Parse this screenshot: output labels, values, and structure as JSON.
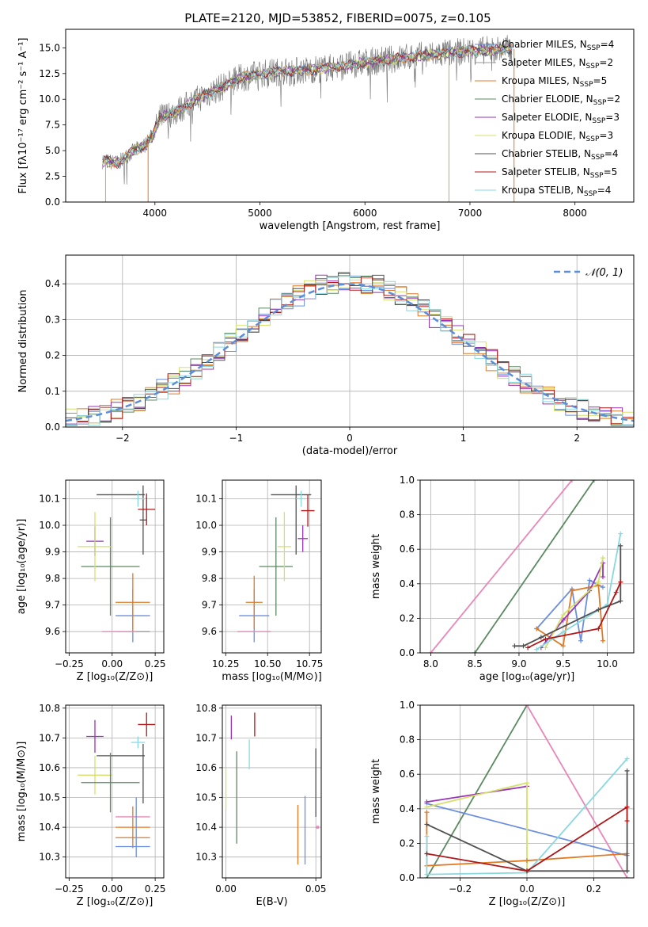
{
  "figure_title": "PLATE=2120, MJD=53852, FIBERID=0075, z=0.105",
  "colors": {
    "chabrier_miles": "#6a8ee0",
    "salpeter_miles": "#9a9a9a",
    "kroupa_miles": "#e07a24",
    "chabrier_elodie": "#5a8a60",
    "salpeter_elodie": "#9a34b8",
    "kroupa_elodie": "#d4e06a",
    "chabrier_stelib": "#505050",
    "salpeter_stelib": "#b01818",
    "kroupa_stelib": "#88d8e0",
    "gaussian": "#5b8dd9",
    "pink": "#e887b8"
  },
  "chart_data": [
    {
      "id": "spectrum",
      "type": "line",
      "xlabel": "wavelength [Angstrom, rest frame]",
      "ylabel": "Flux [fλ10⁻¹⁷ erg cm⁻² s⁻¹ A⁻¹]",
      "xlim": [
        3150,
        8560
      ],
      "ylim": [
        0,
        16.8
      ],
      "xticks": [
        4000,
        5000,
        6000,
        7000,
        8000
      ],
      "yticks": [
        0.0,
        2.5,
        5.0,
        7.5,
        10.0,
        12.5,
        15.0
      ],
      "legend_position": "right",
      "legend": [
        {
          "label": "Chabrier MILES, N",
          "sub": "SSP",
          "eq": "=4",
          "color_key": "chabrier_miles"
        },
        {
          "label": "Salpeter MILES, N",
          "sub": "SSP",
          "eq": "=2",
          "color_key": "salpeter_miles"
        },
        {
          "label": "Kroupa MILES, N",
          "sub": "SSP",
          "eq": "=5",
          "color_key": "kroupa_miles"
        },
        {
          "label": "Chabrier ELODIE, N",
          "sub": "SSP",
          "eq": "=2",
          "color_key": "chabrier_elodie"
        },
        {
          "label": "Salpeter ELODIE, N",
          "sub": "SSP",
          "eq": "=3",
          "color_key": "salpeter_elodie"
        },
        {
          "label": "Kroupa ELODIE, N",
          "sub": "SSP",
          "eq": "=3",
          "color_key": "kroupa_elodie"
        },
        {
          "label": "Chabrier STELIB, N",
          "sub": "SSP",
          "eq": "=4",
          "color_key": "chabrier_stelib"
        },
        {
          "label": "Salpeter STELIB, N",
          "sub": "SSP",
          "eq": "=5",
          "color_key": "salpeter_stelib"
        },
        {
          "label": "Kroupa STELIB, N",
          "sub": "SSP",
          "eq": "=4",
          "color_key": "kroupa_stelib"
        }
      ],
      "continuum": {
        "x": [
          3500,
          3650,
          3800,
          3900,
          3980,
          4050,
          4200,
          4400,
          4600,
          4800,
          5000,
          5200,
          5400,
          5600,
          5800,
          6000,
          6200,
          6400,
          6600,
          6800,
          7000,
          7200,
          7400
        ],
        "y": [
          4.0,
          3.8,
          5.0,
          5.5,
          6.5,
          8.2,
          8.8,
          10.0,
          11.0,
          12.0,
          12.5,
          12.7,
          12.8,
          13.0,
          13.2,
          13.6,
          13.8,
          14.1,
          14.3,
          14.5,
          14.7,
          14.8,
          14.9
        ]
      },
      "dips": [
        {
          "x": 3530,
          "y": 0
        },
        {
          "x": 3935,
          "y": 0
        },
        {
          "x": 6800,
          "y": 0
        },
        {
          "x": 7420,
          "y": 0
        }
      ]
    },
    {
      "id": "residuals",
      "type": "histogram",
      "xlabel": "(data-model)/error",
      "ylabel": "Normed distribution",
      "xlim": [
        -2.5,
        2.5
      ],
      "ylim": [
        0,
        0.48
      ],
      "xticks": [
        -2,
        -1,
        0,
        1,
        2
      ],
      "yticks": [
        0.0,
        0.1,
        0.2,
        0.3,
        0.4
      ],
      "gaussian_label": "𝒩(0, 1)",
      "legend_position": "top-right"
    },
    {
      "id": "z_vs_age",
      "type": "errorbar",
      "xlabel": "Z [log₁₀(Z/Z⊙)]",
      "ylabel": "age  [log₁₀(age/yr)]",
      "xlim": [
        -0.27,
        0.3
      ],
      "ylim": [
        9.52,
        10.17
      ],
      "xticks": [
        -0.25,
        0.0,
        0.25
      ],
      "yticks": [
        9.6,
        9.7,
        9.8,
        9.9,
        10.0,
        10.1
      ],
      "points": [
        {
          "x": 0.12,
          "xerr": 0.1,
          "y": 9.66,
          "yerr": 0.1,
          "color_key": "chabrier_miles"
        },
        {
          "x": 0.12,
          "xerr": 0.1,
          "y": 9.6,
          "yerr": 0.0,
          "color_key": "salpeter_miles"
        },
        {
          "x": 0.12,
          "xerr": 0.1,
          "y": 9.71,
          "yerr": 0.11,
          "color_key": "kroupa_miles"
        },
        {
          "x": -0.01,
          "xerr": 0.17,
          "y": 9.845,
          "yerr": 0.185,
          "color_key": "chabrier_elodie"
        },
        {
          "x": -0.1,
          "xerr": 0.05,
          "y": 9.94,
          "yerr": 0.055,
          "color_key": "salpeter_elodie"
        },
        {
          "x": -0.1,
          "xerr": 0.1,
          "y": 9.92,
          "yerr": 0.13,
          "color_key": "kroupa_elodie"
        },
        {
          "x": 0.05,
          "xerr": 0.14,
          "y": 10.115,
          "yerr": 0.0,
          "color_key": "chabrier_stelib"
        },
        {
          "x": 0.18,
          "xerr": 0.02,
          "y": 10.02,
          "yerr": 0.13,
          "color_key": "chabrier_stelib"
        },
        {
          "x": 0.2,
          "xerr": 0.05,
          "y": 10.06,
          "yerr": 0.06,
          "color_key": "salpeter_stelib"
        },
        {
          "x": 0.15,
          "xerr": 0.04,
          "y": 10.1,
          "yerr": 0.03,
          "color_key": "kroupa_stelib"
        },
        {
          "x": 0.04,
          "xerr": 0.1,
          "y": 9.6,
          "yerr": 0.0,
          "color_key": "pink"
        }
      ]
    },
    {
      "id": "mass_vs_age",
      "type": "errorbar",
      "xlabel": "mass [log₁₀(M/M⊙)]",
      "ylabel": "",
      "xlim": [
        10.23,
        10.82
      ],
      "ylim": [
        9.52,
        10.17
      ],
      "xticks": [
        10.25,
        10.5,
        10.75
      ],
      "yticks": [
        9.6,
        9.7,
        9.8,
        9.9,
        10.0,
        10.1
      ],
      "points": [
        {
          "x": 10.42,
          "xerr": 0.09,
          "y": 9.66,
          "yerr": 0.1,
          "color_key": "chabrier_miles"
        },
        {
          "x": 10.42,
          "xerr": 0.1,
          "y": 9.6,
          "yerr": 0.0,
          "color_key": "pink"
        },
        {
          "x": 10.42,
          "xerr": 0.05,
          "y": 9.71,
          "yerr": 0.1,
          "color_key": "kroupa_miles"
        },
        {
          "x": 10.55,
          "xerr": 0.1,
          "y": 9.845,
          "yerr": 0.185,
          "color_key": "chabrier_elodie"
        },
        {
          "x": 10.71,
          "xerr": 0.03,
          "y": 9.95,
          "yerr": 0.05,
          "color_key": "salpeter_elodie"
        },
        {
          "x": 10.6,
          "xerr": 0.04,
          "y": 9.92,
          "yerr": 0.13,
          "color_key": "kroupa_elodie"
        },
        {
          "x": 10.64,
          "xerr": 0.12,
          "y": 10.115,
          "yerr": 0.0,
          "color_key": "chabrier_stelib"
        },
        {
          "x": 10.67,
          "xerr": 0.0,
          "y": 10.02,
          "yerr": 0.13,
          "color_key": "chabrier_stelib"
        },
        {
          "x": 10.74,
          "xerr": 0.04,
          "y": 10.055,
          "yerr": 0.06,
          "color_key": "salpeter_stelib"
        },
        {
          "x": 10.7,
          "xerr": 0.03,
          "y": 10.1,
          "yerr": 0.03,
          "color_key": "kroupa_stelib"
        }
      ]
    },
    {
      "id": "weight_vs_age",
      "type": "line",
      "xlabel": "age  [log₁₀(age/yr)]",
      "ylabel": "mass weight",
      "xlim": [
        7.88,
        10.3
      ],
      "ylim": [
        0,
        1.0
      ],
      "xticks": [
        8.0,
        8.5,
        9.0,
        9.5,
        10.0
      ],
      "yticks": [
        0.0,
        0.2,
        0.4,
        0.6,
        0.8,
        1.0
      ],
      "series": [
        {
          "color_key": "pink",
          "x": [
            8.0,
            9.6
          ],
          "y": [
            0.0,
            1.0
          ]
        },
        {
          "color_key": "chabrier_elodie",
          "x": [
            8.5,
            9.85
          ],
          "y": [
            0.0,
            1.0
          ]
        },
        {
          "color_key": "chabrier_miles",
          "x": [
            9.2,
            9.6,
            9.7,
            9.8,
            9.95
          ],
          "y": [
            0.14,
            0.37,
            0.07,
            0.42,
            0.38
          ]
        },
        {
          "color_key": "kroupa_miles",
          "x": [
            9.2,
            9.5,
            9.6,
            9.9,
            9.95
          ],
          "y": [
            0.14,
            0.04,
            0.36,
            0.39,
            0.07
          ]
        },
        {
          "color_key": "salpeter_elodie",
          "x": [
            9.25,
            9.5,
            9.8,
            9.95,
            9.95
          ],
          "y": [
            0.03,
            0.19,
            0.36,
            0.52,
            0.44
          ]
        },
        {
          "color_key": "kroupa_elodie",
          "x": [
            9.3,
            9.5,
            9.9,
            9.95
          ],
          "y": [
            0.03,
            0.22,
            0.41,
            0.55
          ]
        },
        {
          "color_key": "kroupa_stelib",
          "x": [
            9.2,
            9.5,
            10.0,
            10.15
          ],
          "y": [
            0.02,
            0.12,
            0.28,
            0.69
          ]
        },
        {
          "color_key": "chabrier_stelib",
          "x": [
            8.95,
            9.05,
            9.25,
            9.9,
            10.15,
            10.15
          ],
          "y": [
            0.04,
            0.04,
            0.09,
            0.25,
            0.3,
            0.62
          ]
        },
        {
          "color_key": "salpeter_stelib",
          "x": [
            9.1,
            9.3,
            9.9,
            10.1,
            10.15
          ],
          "y": [
            0.03,
            0.08,
            0.14,
            0.35,
            0.41
          ]
        }
      ]
    },
    {
      "id": "z_vs_mass",
      "type": "errorbar",
      "xlabel": "Z [log₁₀(Z/Z⊙)]",
      "ylabel": "mass [log₁₀(M/M⊙)]",
      "xlim": [
        -0.27,
        0.3
      ],
      "ylim": [
        10.23,
        10.81
      ],
      "xticks": [
        -0.25,
        0.0,
        0.25
      ],
      "yticks": [
        10.3,
        10.4,
        10.5,
        10.6,
        10.7,
        10.8
      ],
      "points": [
        {
          "x": -0.1,
          "xerr": 0.05,
          "y": 10.705,
          "yerr": 0.055,
          "color_key": "salpeter_elodie"
        },
        {
          "x": 0.2,
          "xerr": 0.05,
          "y": 10.745,
          "yerr": 0.04,
          "color_key": "salpeter_stelib"
        },
        {
          "x": 0.15,
          "xerr": 0.04,
          "y": 10.685,
          "yerr": 0.02,
          "color_key": "kroupa_stelib"
        },
        {
          "x": 0.05,
          "xerr": 0.14,
          "y": 10.64,
          "yerr": 0.0,
          "color_key": "chabrier_stelib"
        },
        {
          "x": 0.18,
          "xerr": 0.0,
          "y": 10.58,
          "yerr": 0.1,
          "color_key": "chabrier_stelib"
        },
        {
          "x": -0.1,
          "xerr": 0.1,
          "y": 10.575,
          "yerr": 0.065,
          "color_key": "kroupa_elodie"
        },
        {
          "x": -0.01,
          "xerr": 0.17,
          "y": 10.55,
          "yerr": 0.1,
          "color_key": "chabrier_elodie"
        },
        {
          "x": 0.12,
          "xerr": 0.1,
          "y": 10.4,
          "yerr": 0.07,
          "color_key": "kroupa_miles"
        },
        {
          "x": 0.12,
          "xerr": 0.1,
          "y": 10.435,
          "yerr": 0.0,
          "color_key": "pink"
        },
        {
          "x": 0.12,
          "xerr": 0.1,
          "y": 10.365,
          "yerr": 0.0,
          "color_key": "kroupa_miles"
        },
        {
          "x": 0.12,
          "xerr": 0.1,
          "y": 10.335,
          "yerr": 0.0,
          "color_key": "chabrier_miles"
        },
        {
          "x": 0.14,
          "xerr": 0.0,
          "y": 10.4,
          "yerr": 0.1,
          "color_key": "chabrier_miles"
        }
      ]
    },
    {
      "id": "ebv_vs_mass",
      "type": "errorbar",
      "xlabel": "E(B-V)",
      "ylabel": "",
      "xlim": [
        -0.002,
        0.053
      ],
      "ylim": [
        10.23,
        10.81
      ],
      "xticks": [
        0.0,
        0.05
      ],
      "yticks": [
        10.3,
        10.4,
        10.5,
        10.6,
        10.7,
        10.8
      ],
      "points": [
        {
          "x": 0.003,
          "xerr": 0.0,
          "y": 10.735,
          "yerr": 0.04,
          "color_key": "salpeter_elodie"
        },
        {
          "x": 0.016,
          "xerr": 0.0,
          "y": 10.745,
          "yerr": 0.04,
          "color_key": "salpeter_stelib"
        },
        {
          "x": 0.013,
          "xerr": 0.0,
          "y": 10.645,
          "yerr": 0.05,
          "color_key": "kroupa_stelib"
        },
        {
          "x": 0.006,
          "xerr": 0.0,
          "y": 10.5,
          "yerr": 0.155,
          "color_key": "chabrier_elodie"
        },
        {
          "x": 0.0,
          "xerr": 0.0,
          "y": 10.53,
          "yerr": 0.07,
          "color_key": "kroupa_elodie"
        },
        {
          "x": 0.04,
          "xerr": 0.0,
          "y": 10.375,
          "yerr": 0.1,
          "color_key": "kroupa_miles"
        },
        {
          "x": 0.044,
          "xerr": 0.0,
          "y": 10.39,
          "yerr": 0.115,
          "color_key": "chabrier_miles"
        },
        {
          "x": 0.05,
          "xerr": 0.0,
          "y": 10.55,
          "yerr": 0.115,
          "color_key": "chabrier_stelib"
        },
        {
          "x": 0.051,
          "xerr": 0.0,
          "y": 10.4,
          "yerr": 0.0,
          "color_key": "pink"
        }
      ]
    },
    {
      "id": "weight_vs_z",
      "type": "line",
      "xlabel": "Z [log₁₀(Z/Z⊙)]",
      "ylabel": "mass weight",
      "xlim": [
        -0.32,
        0.32
      ],
      "ylim": [
        0,
        1.0
      ],
      "xticks": [
        -0.2,
        0.0,
        0.2
      ],
      "yticks": [
        0.0,
        0.2,
        0.4,
        0.6,
        0.8,
        1.0
      ],
      "series": [
        {
          "color_key": "chabrier_elodie",
          "x": [
            -0.3,
            0.0
          ],
          "y": [
            0.0,
            1.0
          ]
        },
        {
          "color_key": "pink",
          "x": [
            0.0,
            0.3
          ],
          "y": [
            1.0,
            0.0
          ]
        },
        {
          "color_key": "chabrier_miles",
          "x": [
            -0.3,
            0.3
          ],
          "y": [
            0.43,
            0.13
          ]
        },
        {
          "color_key": "salpeter_elodie",
          "x": [
            -0.3,
            0.0,
            0.0
          ],
          "y": [
            0.44,
            0.53,
            0.53
          ]
        },
        {
          "color_key": "kroupa_elodie",
          "x": [
            -0.3,
            0.0,
            0.0,
            0.0
          ],
          "y": [
            0.41,
            0.55,
            0.03,
            0.03
          ]
        },
        {
          "color_key": "kroupa_miles",
          "x": [
            -0.3,
            -0.3,
            0.0,
            0.3
          ],
          "y": [
            0.38,
            0.07,
            0.1,
            0.14
          ]
        },
        {
          "color_key": "kroupa_stelib",
          "x": [
            -0.3,
            -0.3,
            0.0,
            0.3
          ],
          "y": [
            0.24,
            0.02,
            0.03,
            0.69
          ]
        },
        {
          "color_key": "chabrier_stelib",
          "x": [
            -0.3,
            0.0,
            0.3,
            0.3,
            0.3
          ],
          "y": [
            0.31,
            0.04,
            0.04,
            0.62,
            0.04
          ]
        },
        {
          "color_key": "salpeter_stelib",
          "x": [
            -0.3,
            0.0,
            0.3,
            0.3
          ],
          "y": [
            0.14,
            0.04,
            0.41,
            0.33
          ]
        }
      ]
    }
  ]
}
